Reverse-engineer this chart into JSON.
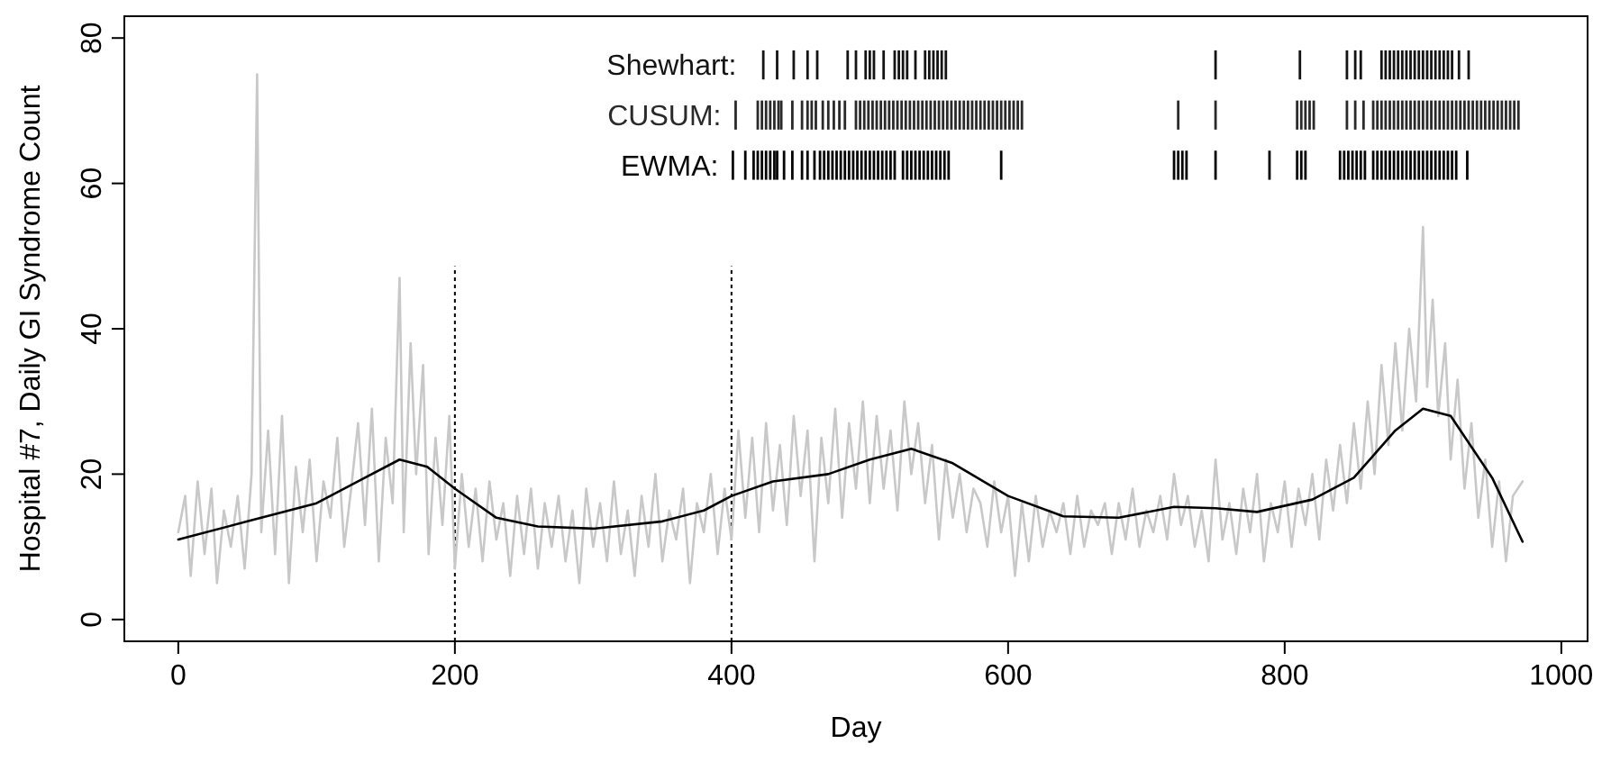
{
  "chart_data": {
    "type": "line",
    "xlabel": "Day",
    "ylabel": "Hospital #7, Daily GI Syndrome Count",
    "xlim": [
      -39,
      1019
    ],
    "ylim": [
      -3,
      83
    ],
    "xticks": [
      0,
      200,
      400,
      600,
      800,
      1000
    ],
    "yticks": [
      0,
      20,
      40,
      60,
      80
    ],
    "grid": false,
    "legend": "top",
    "ref_lines": [
      {
        "axis": "x",
        "value": 200,
        "color": "#000000",
        "line_style": "dotted"
      },
      {
        "axis": "x",
        "value": 400,
        "color": "#000000",
        "line_style": "dotted"
      }
    ],
    "series": [
      {
        "color": "#c8c8c8",
        "x": [
          0,
          5,
          9,
          14,
          19,
          24,
          28,
          33,
          38,
          43,
          48,
          53,
          57,
          60,
          65,
          70,
          75,
          80,
          85,
          90,
          95,
          100,
          105,
          110,
          115,
          120,
          125,
          130,
          135,
          140,
          145,
          150,
          155,
          160,
          163,
          168,
          172,
          177,
          181,
          186,
          191,
          196,
          200,
          205,
          210,
          215,
          220,
          225,
          230,
          235,
          240,
          245,
          250,
          255,
          260,
          265,
          270,
          275,
          280,
          285,
          290,
          295,
          300,
          305,
          310,
          315,
          320,
          325,
          330,
          335,
          340,
          345,
          350,
          355,
          360,
          365,
          370,
          375,
          380,
          385,
          390,
          395,
          400,
          405,
          410,
          415,
          420,
          425,
          430,
          435,
          440,
          445,
          450,
          455,
          460,
          465,
          470,
          475,
          480,
          485,
          490,
          495,
          500,
          505,
          510,
          515,
          520,
          525,
          530,
          535,
          540,
          545,
          550,
          555,
          560,
          565,
          570,
          575,
          580,
          585,
          590,
          595,
          600,
          605,
          610,
          615,
          620,
          625,
          630,
          635,
          640,
          645,
          650,
          655,
          660,
          665,
          670,
          675,
          680,
          685,
          690,
          695,
          700,
          705,
          710,
          715,
          720,
          725,
          730,
          735,
          740,
          745,
          750,
          755,
          760,
          765,
          770,
          775,
          780,
          785,
          790,
          795,
          800,
          805,
          810,
          815,
          820,
          825,
          830,
          835,
          840,
          845,
          850,
          855,
          860,
          865,
          870,
          875,
          880,
          885,
          890,
          895,
          900,
          903,
          907,
          911,
          916,
          920,
          925,
          930,
          935,
          940,
          945,
          950,
          955,
          960,
          965,
          972
        ],
        "values": [
          12,
          17,
          6,
          19,
          9,
          18,
          5,
          15,
          10,
          17,
          7,
          20,
          75,
          12,
          26,
          9,
          28,
          5,
          21,
          12,
          22,
          8,
          19,
          14,
          25,
          10,
          18,
          27,
          13,
          29,
          8,
          25,
          16,
          47,
          12,
          38,
          20,
          35,
          9,
          25,
          13,
          28,
          7,
          20,
          10,
          18,
          8,
          19,
          11,
          16,
          6,
          17,
          9,
          18,
          7,
          16,
          10,
          17,
          8,
          15,
          5,
          18,
          10,
          16,
          8,
          19,
          9,
          15,
          6,
          17,
          10,
          20,
          8,
          15,
          11,
          18,
          5,
          16,
          12,
          20,
          9,
          18,
          11,
          26,
          14,
          25,
          12,
          27,
          15,
          24,
          13,
          28,
          17,
          26,
          8,
          25,
          16,
          29,
          14,
          27,
          18,
          30,
          16,
          28,
          18,
          26,
          15,
          30,
          20,
          27,
          16,
          24,
          11,
          22,
          14,
          20,
          12,
          18,
          16,
          10,
          19,
          12,
          17,
          6,
          16,
          8,
          17,
          10,
          15,
          12,
          16,
          9,
          17,
          10,
          15,
          13,
          16,
          9,
          16,
          11,
          18,
          10,
          15,
          12,
          17,
          11,
          20,
          13,
          17,
          10,
          15,
          8,
          22,
          11,
          16,
          9,
          18,
          12,
          20,
          8,
          16,
          12,
          19,
          10,
          18,
          13,
          20,
          11,
          22,
          15,
          24,
          16,
          27,
          18,
          30,
          20,
          35,
          24,
          38,
          26,
          40,
          30,
          54,
          32,
          44,
          28,
          38,
          22,
          33,
          18,
          27,
          14,
          22,
          10,
          19,
          8,
          17,
          19
        ]
      },
      {
        "color": "#000000",
        "x": [
          0,
          50,
          100,
          130,
          160,
          180,
          200,
          230,
          260,
          300,
          350,
          380,
          400,
          430,
          470,
          500,
          530,
          560,
          600,
          640,
          680,
          720,
          750,
          780,
          820,
          850,
          880,
          900,
          920,
          950,
          972
        ],
        "values": [
          11,
          13.5,
          16,
          19,
          22,
          21,
          18,
          14,
          12.8,
          12.5,
          13.5,
          15,
          17,
          19,
          20,
          22,
          23.5,
          21.5,
          17,
          14.2,
          14,
          15.5,
          15.3,
          14.8,
          16.5,
          19.5,
          26,
          29,
          28,
          19.5,
          10.7
        ]
      },
      {
        "type": "bar",
        "name": "Shewhart:",
        "color": "#141414",
        "base": [
          74.3,
          74.3,
          74.3,
          74.3,
          74.3,
          74.3,
          74.3,
          74.3,
          74.3,
          74.3,
          74.3,
          74.3,
          74.3,
          74.3,
          74.3,
          74.3,
          74.3,
          74.3,
          74.3,
          74.3,
          74.3,
          74.3,
          74.3,
          74.3,
          74.3,
          74.3,
          74.3,
          74.3,
          74.3,
          74.3,
          74.3,
          74.3,
          74.3,
          74.3,
          74.3,
          74.3,
          74.3,
          74.3,
          74.3,
          74.3,
          74.3,
          74.3,
          74.3,
          74.3,
          74.3,
          74.3,
          74.3
        ],
        "x": [
          423,
          433,
          445,
          455,
          462,
          484,
          490,
          497,
          500,
          503,
          510,
          518,
          521,
          524,
          527,
          533,
          540,
          543,
          546,
          549,
          552,
          555,
          750,
          811,
          845,
          851,
          855,
          870,
          873,
          876,
          879,
          882,
          885,
          888,
          891,
          894,
          897,
          900,
          903,
          906,
          909,
          912,
          915,
          918,
          921,
          926,
          933
        ],
        "values": [
          4,
          4,
          4,
          4,
          4,
          4,
          4,
          4,
          4,
          4,
          4,
          4,
          4,
          4,
          4,
          4,
          4,
          4,
          4,
          4,
          4,
          4,
          4,
          4,
          4,
          4,
          4,
          4,
          4,
          4,
          4,
          4,
          4,
          4,
          4,
          4,
          4,
          4,
          4,
          4,
          4,
          4,
          4,
          4,
          4,
          4,
          4
        ]
      },
      {
        "type": "bar",
        "name": "CUSUM:",
        "color": "#2a2a2a",
        "base": [
          67.4,
          67.4,
          67.4,
          67.4,
          67.4,
          67.4,
          67.4,
          67.4,
          67.4,
          67.4,
          67.4,
          67.4,
          67.4,
          67.4,
          67.4,
          67.4,
          67.4,
          67.4,
          67.4,
          67.4,
          67.4,
          67.4,
          67.4,
          67.4,
          67.4,
          67.4,
          67.4,
          67.4,
          67.4,
          67.4,
          67.4,
          67.4,
          67.4,
          67.4,
          67.4,
          67.4,
          67.4,
          67.4,
          67.4,
          67.4,
          67.4,
          67.4,
          67.4,
          67.4,
          67.4,
          67.4,
          67.4,
          67.4,
          67.4,
          67.4,
          67.4,
          67.4,
          67.4,
          67.4,
          67.4,
          67.4,
          67.4,
          67.4,
          67.4,
          67.4,
          67.4,
          67.4,
          67.4,
          67.4,
          67.4,
          67.4,
          67.4,
          67.4,
          67.4,
          67.4,
          67.4,
          67.4,
          67.4,
          67.4,
          67.4,
          67.4,
          67.4,
          67.4,
          67.4,
          67.4,
          67.4,
          67.4,
          67.4,
          67.4,
          67.4,
          67.4,
          67.4,
          67.4,
          67.4,
          67.4,
          67.4,
          67.4,
          67.4,
          67.4,
          67.4,
          67.4,
          67.4,
          67.4,
          67.4,
          67.4,
          67.4,
          67.4,
          67.4,
          67.4,
          67.4
        ],
        "x": [
          403,
          419,
          422,
          425,
          428,
          431,
          434,
          436,
          444,
          451,
          455,
          458,
          461,
          466,
          470,
          474,
          478,
          482,
          490,
          493,
          496,
          499,
          502,
          505,
          508,
          511,
          514,
          517,
          520,
          523,
          526,
          529,
          532,
          535,
          538,
          541,
          544,
          547,
          550,
          553,
          556,
          559,
          562,
          565,
          568,
          571,
          574,
          577,
          580,
          583,
          586,
          589,
          592,
          595,
          598,
          601,
          604,
          607,
          610,
          723,
          750,
          809,
          812,
          815,
          818,
          821,
          845,
          851,
          857,
          864,
          867,
          870,
          873,
          876,
          879,
          882,
          885,
          888,
          891,
          894,
          897,
          900,
          903,
          906,
          909,
          912,
          915,
          918,
          921,
          924,
          927,
          930,
          933,
          936,
          939,
          942,
          945,
          948,
          951,
          954,
          957,
          960,
          963,
          966,
          969
        ],
        "values": [
          4,
          4,
          4,
          4,
          4,
          4,
          4,
          4,
          4,
          4,
          4,
          4,
          4,
          4,
          4,
          4,
          4,
          4,
          4,
          4,
          4,
          4,
          4,
          4,
          4,
          4,
          4,
          4,
          4,
          4,
          4,
          4,
          4,
          4,
          4,
          4,
          4,
          4,
          4,
          4,
          4,
          4,
          4,
          4,
          4,
          4,
          4,
          4,
          4,
          4,
          4,
          4,
          4,
          4,
          4,
          4,
          4,
          4,
          4,
          4,
          4,
          4,
          4,
          4,
          4,
          4,
          4,
          4,
          4,
          4,
          4,
          4,
          4,
          4,
          4,
          4,
          4,
          4,
          4,
          4,
          4,
          4,
          4,
          4,
          4,
          4,
          4,
          4,
          4,
          4,
          4,
          4,
          4,
          4,
          4,
          4,
          4,
          4,
          4,
          4,
          4,
          4,
          4,
          4,
          4
        ]
      },
      {
        "type": "bar",
        "name": "EWMA:",
        "color": "#050505",
        "base": [
          60.5,
          60.5,
          60.5,
          60.5,
          60.5,
          60.5,
          60.5,
          60.5,
          60.5,
          60.5,
          60.5,
          60.5,
          60.5,
          60.5,
          60.5,
          60.5,
          60.5,
          60.5,
          60.5,
          60.5,
          60.5,
          60.5,
          60.5,
          60.5,
          60.5,
          60.5,
          60.5,
          60.5,
          60.5,
          60.5,
          60.5,
          60.5,
          60.5,
          60.5,
          60.5,
          60.5,
          60.5,
          60.5,
          60.5,
          60.5,
          60.5,
          60.5,
          60.5,
          60.5,
          60.5,
          60.5,
          60.5,
          60.5,
          60.5,
          60.5,
          60.5,
          60.5,
          60.5,
          60.5,
          60.5,
          60.5,
          60.5,
          60.5,
          60.5,
          60.5,
          60.5,
          60.5,
          60.5,
          60.5,
          60.5,
          60.5,
          60.5,
          60.5,
          60.5,
          60.5,
          60.5,
          60.5,
          60.5,
          60.5,
          60.5,
          60.5,
          60.5,
          60.5,
          60.5,
          60.5,
          60.5,
          60.5,
          60.5,
          60.5
        ],
        "x": [
          401,
          410,
          416,
          419,
          422,
          425,
          428,
          431,
          433,
          438,
          444,
          451,
          455,
          460,
          464,
          467,
          470,
          473,
          476,
          479,
          482,
          485,
          488,
          491,
          494,
          497,
          500,
          503,
          506,
          509,
          512,
          515,
          518,
          524,
          527,
          530,
          533,
          536,
          539,
          542,
          545,
          548,
          551,
          554,
          557,
          595,
          720,
          723,
          726,
          729,
          750,
          789,
          809,
          812,
          815,
          840,
          843,
          846,
          849,
          852,
          855,
          858,
          864,
          867,
          870,
          873,
          876,
          879,
          882,
          885,
          888,
          891,
          894,
          897,
          900,
          903,
          906,
          909,
          912,
          915,
          918,
          921,
          924,
          932
        ],
        "values": [
          4,
          4,
          4,
          4,
          4,
          4,
          4,
          4,
          4,
          4,
          4,
          4,
          4,
          4,
          4,
          4,
          4,
          4,
          4,
          4,
          4,
          4,
          4,
          4,
          4,
          4,
          4,
          4,
          4,
          4,
          4,
          4,
          4,
          4,
          4,
          4,
          4,
          4,
          4,
          4,
          4,
          4,
          4,
          4,
          4,
          4,
          4,
          4,
          4,
          4,
          4,
          4,
          4,
          4,
          4,
          4,
          4,
          4,
          4,
          4,
          4,
          4,
          4,
          4,
          4,
          4,
          4,
          4,
          4,
          4,
          4,
          4,
          4,
          4,
          4,
          4,
          4,
          4,
          4,
          4,
          4,
          4,
          4,
          4
        ]
      }
    ]
  }
}
